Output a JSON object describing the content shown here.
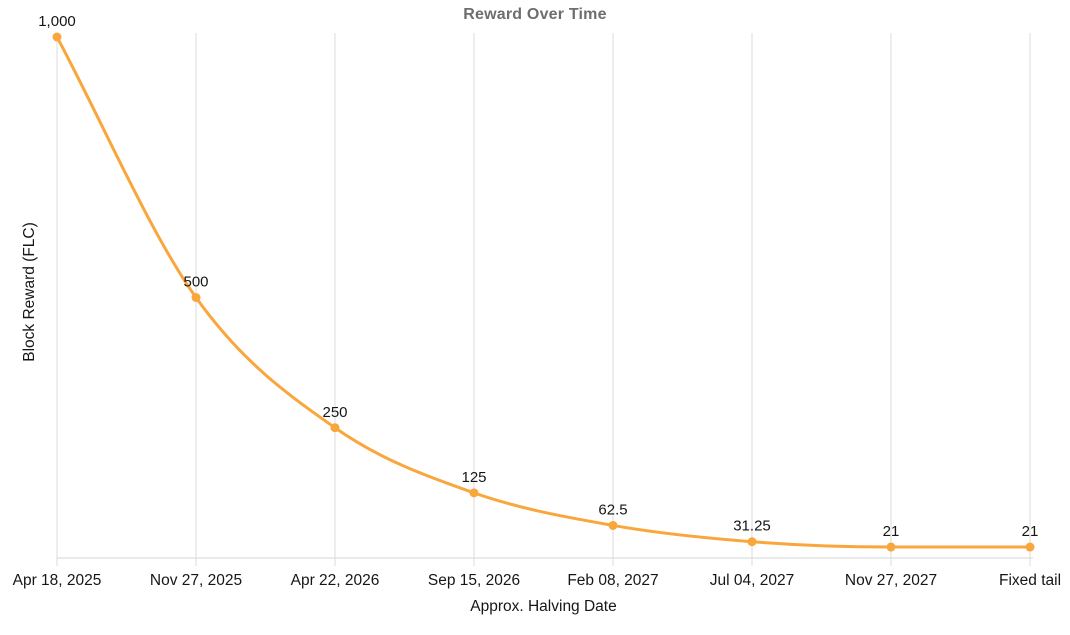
{
  "chart_data": {
    "type": "line",
    "title": "Reward Over Time",
    "xlabel": "Approx. Halving Date",
    "ylabel": "Block Reward (FLC)",
    "categories": [
      "Apr 18, 2025",
      "Nov 27, 2025",
      "Apr 22, 2026",
      "Sep 15, 2026",
      "Feb 08, 2027",
      "Jul 04, 2027",
      "Nov 27, 2027",
      "Fixed tail"
    ],
    "values": [
      1000,
      500,
      250,
      125,
      62.5,
      31.25,
      21,
      21
    ],
    "point_labels": [
      "1,000",
      "500",
      "250",
      "125",
      "62.5",
      "31.25",
      "21",
      "21"
    ],
    "ylim": [
      0,
      1000
    ],
    "grid": "vertical-only",
    "legend": "none",
    "curve": "monotone",
    "colors": {
      "line": "#F9A63C",
      "marker": "#F9A63C",
      "gridline": "#DBDBDB",
      "axis_line": "#D6D6D6",
      "title_text": "#6E6E6E",
      "label_text": "#161616"
    }
  }
}
